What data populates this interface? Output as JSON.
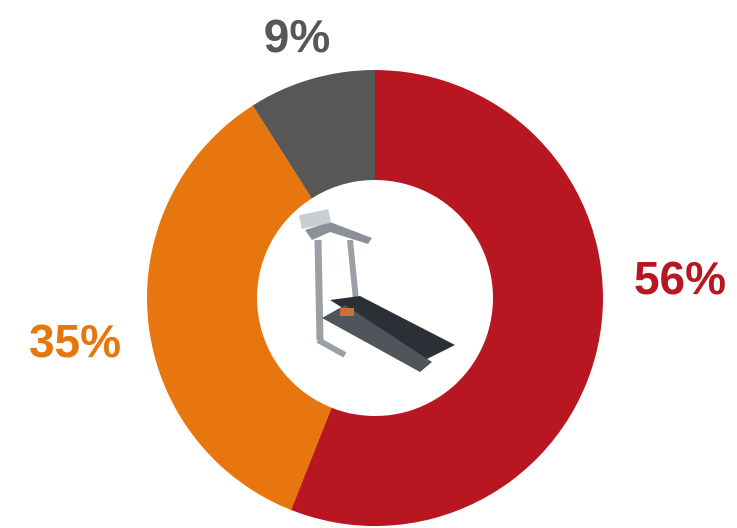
{
  "chart_data": {
    "type": "donut",
    "values": [
      56,
      35,
      9
    ],
    "value_labels": [
      "56%",
      "35%",
      "9%"
    ],
    "colors": [
      "#b81620",
      "#e8760e",
      "#575757"
    ]
  }
}
